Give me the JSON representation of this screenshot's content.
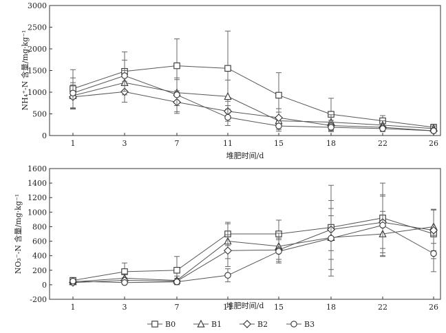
{
  "chart_data": [
    {
      "type": "line",
      "xlabel": "堆肥时间/d",
      "ylabel": "NH₄⁺-N 含量/mg·kg⁻¹",
      "x": [
        "1",
        "3",
        "7",
        "11",
        "15",
        "18",
        "22",
        "26"
      ],
      "ylim": [
        0,
        3000
      ],
      "yticks": [
        0,
        500,
        1000,
        1500,
        2000,
        2500,
        3000
      ],
      "series": [
        {
          "name": "B0",
          "marker": "square",
          "values": [
            1080,
            1480,
            1610,
            1550,
            930,
            490,
            340,
            190
          ],
          "error": [
            440,
            450,
            620,
            860,
            520,
            370,
            120,
            70
          ]
        },
        {
          "name": "B1",
          "marker": "triangle",
          "values": [
            920,
            1220,
            990,
            900,
            340,
            310,
            240,
            160
          ],
          "error": [
            300,
            280,
            300,
            380,
            200,
            170,
            100,
            60
          ]
        },
        {
          "name": "B2",
          "marker": "diamond",
          "values": [
            890,
            1010,
            770,
            560,
            410,
            230,
            190,
            110
          ],
          "error": [
            280,
            240,
            260,
            230,
            210,
            120,
            80,
            50
          ]
        },
        {
          "name": "B3",
          "marker": "circle",
          "values": [
            980,
            1380,
            940,
            420,
            220,
            190,
            160,
            110
          ],
          "error": [
            350,
            360,
            390,
            190,
            120,
            100,
            70,
            50
          ]
        }
      ]
    },
    {
      "type": "line",
      "xlabel": "堆肥时间/d",
      "ylabel": "NO₃⁻-N 含量/mg·kg⁻¹",
      "x": [
        "1",
        "3",
        "7",
        "11",
        "15",
        "18",
        "22",
        "26"
      ],
      "ylim": [
        -200,
        1600
      ],
      "yticks": [
        -200,
        0,
        200,
        400,
        600,
        800,
        1000,
        1200,
        1400,
        1600
      ],
      "series": [
        {
          "name": "B0",
          "marker": "square",
          "values": [
            60,
            180,
            200,
            700,
            700,
            790,
            920,
            700
          ],
          "error": [
            30,
            120,
            190,
            160,
            190,
            580,
            480,
            340
          ]
        },
        {
          "name": "B1",
          "marker": "triangle",
          "values": [
            40,
            90,
            60,
            600,
            530,
            650,
            700,
            800
          ],
          "error": [
            20,
            60,
            60,
            240,
            180,
            300,
            310,
            230
          ]
        },
        {
          "name": "B2",
          "marker": "diamond",
          "values": [
            30,
            60,
            50,
            470,
            480,
            760,
            860,
            750
          ],
          "error": [
            20,
            40,
            40,
            220,
            160,
            290,
            360,
            280
          ]
        },
        {
          "name": "B3",
          "marker": "circle",
          "values": [
            50,
            30,
            40,
            130,
            460,
            640,
            820,
            430
          ],
          "error": [
            20,
            20,
            30,
            90,
            160,
            520,
            420,
            250
          ]
        }
      ]
    }
  ],
  "legend": {
    "items": [
      {
        "label": "B0",
        "marker": "square"
      },
      {
        "label": "B1",
        "marker": "triangle"
      },
      {
        "label": "B2",
        "marker": "diamond"
      },
      {
        "label": "B3",
        "marker": "circle"
      }
    ]
  }
}
